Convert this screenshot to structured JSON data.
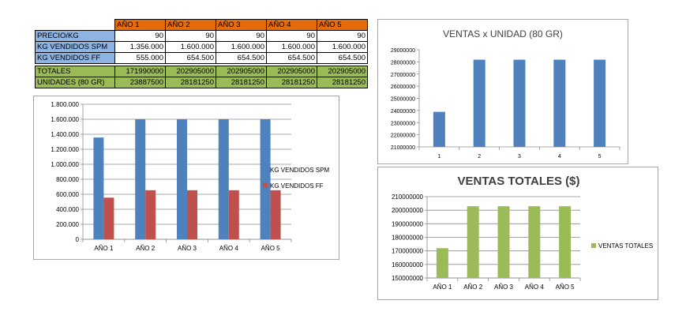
{
  "table": {
    "headers": [
      "AÑO 1",
      "AÑO 2",
      "AÑO 3",
      "AÑO 4",
      "AÑO 5"
    ],
    "rows": [
      {
        "label": "PRECIO/KG",
        "values": [
          "90",
          "90",
          "90",
          "90",
          "90"
        ]
      },
      {
        "label": "KG VENDIDOS SPM",
        "values": [
          "1.356.000",
          "1.600.000",
          "1.600.000",
          "1.600.000",
          "1.600.000"
        ]
      },
      {
        "label": "KG VENDIDOS FF",
        "values": [
          "555.000",
          "654.500",
          "654.500",
          "654.500",
          "654.500"
        ]
      },
      {
        "label": "TOTALES",
        "values": [
          "171990000",
          "202905000",
          "202905000",
          "202905000",
          "202905000"
        ]
      },
      {
        "label": "UNIDADES (80 GR)",
        "values": [
          "23887500",
          "28181250",
          "28181250",
          "28181250",
          "28181250"
        ]
      }
    ]
  },
  "colors": {
    "header_orange": "#e46c0a",
    "row_blue": "#8db3e2",
    "row_green": "#9bbb59",
    "series_blue": "#4f81bd",
    "series_red": "#c0504d",
    "series_green": "#9bbb59"
  },
  "chart_data": [
    {
      "type": "bar",
      "title": "",
      "categories": [
        "AÑO 1",
        "AÑO 2",
        "AÑO 3",
        "AÑO 4",
        "AÑO 5"
      ],
      "series": [
        {
          "name": "KG VENDIDOS SPM",
          "values": [
            1356000,
            1600000,
            1600000,
            1600000,
            1600000
          ],
          "color": "#4f81bd"
        },
        {
          "name": "KG VENDIDOS FF",
          "values": [
            555000,
            654500,
            654500,
            654500,
            654500
          ],
          "color": "#c0504d"
        }
      ],
      "ylim": [
        0,
        1800000
      ],
      "yticks": [
        "0",
        "200.000",
        "400.000",
        "600.000",
        "800.000",
        "1.000.000",
        "1.200.000",
        "1.400.000",
        "1.600.000",
        "1.800.000"
      ],
      "legend": "right",
      "grid": true
    },
    {
      "type": "bar",
      "title": "VENTAS x UNIDAD (80 GR)",
      "categories": [
        "1",
        "2",
        "3",
        "4",
        "5"
      ],
      "series": [
        {
          "values": [
            23887500,
            28181250,
            28181250,
            28181250,
            28181250
          ],
          "color": "#4f81bd"
        }
      ],
      "ylim": [
        21000000,
        29000000
      ],
      "yticks": [
        "21000000",
        "22000000",
        "23000000",
        "24000000",
        "25000000",
        "26000000",
        "27000000",
        "28000000",
        "29000000"
      ],
      "legend": "none",
      "grid": false
    },
    {
      "type": "bar",
      "title": "VENTAS TOTALES ($)",
      "categories": [
        "AÑO 1",
        "AÑO 2",
        "AÑO 3",
        "AÑO 4",
        "AÑO 5"
      ],
      "series": [
        {
          "name": "VENTAS TOTALES",
          "values": [
            171990000,
            202905000,
            202905000,
            202905000,
            202905000
          ],
          "color": "#9bbb59"
        }
      ],
      "ylim": [
        150000000,
        210000000
      ],
      "yticks": [
        "150000000",
        "160000000",
        "170000000",
        "180000000",
        "190000000",
        "200000000",
        "210000000"
      ],
      "legend": "right",
      "grid": true
    }
  ]
}
